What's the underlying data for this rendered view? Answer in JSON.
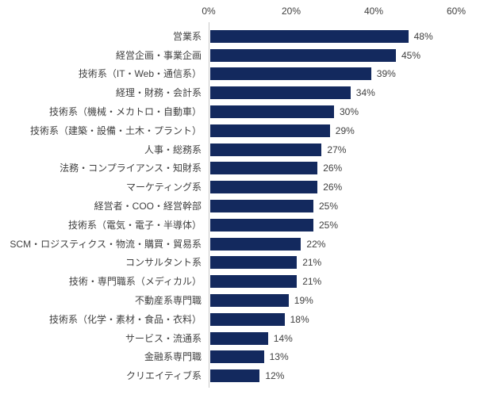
{
  "chart_data": {
    "type": "bar",
    "orientation": "horizontal",
    "title": "",
    "xlabel": "",
    "ylabel": "",
    "grid": false,
    "legend": false,
    "xlim": [
      0,
      60
    ],
    "x_ticks": [
      {
        "label": "0%",
        "value": 0
      },
      {
        "label": "20%",
        "value": 20
      },
      {
        "label": "40%",
        "value": 40
      },
      {
        "label": "60%",
        "value": 60
      }
    ],
    "categories": [
      "営業系",
      "経営企画・事業企画",
      "技術系（IT・Web・通信系）",
      "経理・財務・会計系",
      "技術系（機械・メカトロ・自動車）",
      "技術系（建築・設備・土木・プラント）",
      "人事・総務系",
      "法務・コンプライアンス・知財系",
      "マーケティング系",
      "経営者・COO・経営幹部",
      "技術系（電気・電子・半導体）",
      "SCM・ロジスティクス・物流・購買・貿易系",
      "コンサルタント系",
      "技術・専門職系（メディカル）",
      "不動産系専門職",
      "技術系（化学・素材・食品・衣料）",
      "サービス・流通系",
      "金融系専門職",
      "クリエイティブ系"
    ],
    "values": [
      48,
      45,
      39,
      34,
      30,
      29,
      27,
      26,
      26,
      25,
      25,
      22,
      21,
      21,
      19,
      18,
      14,
      13,
      12
    ],
    "value_labels": [
      "48%",
      "45%",
      "39%",
      "34%",
      "30%",
      "29%",
      "27%",
      "26%",
      "26%",
      "25%",
      "25%",
      "22%",
      "21%",
      "21%",
      "19%",
      "18%",
      "14%",
      "13%",
      "12%"
    ],
    "colors": {
      "bar": "#13295E",
      "axis_line": "#C8C8C8",
      "text": "#404040",
      "background": "#FFFFFF"
    }
  }
}
